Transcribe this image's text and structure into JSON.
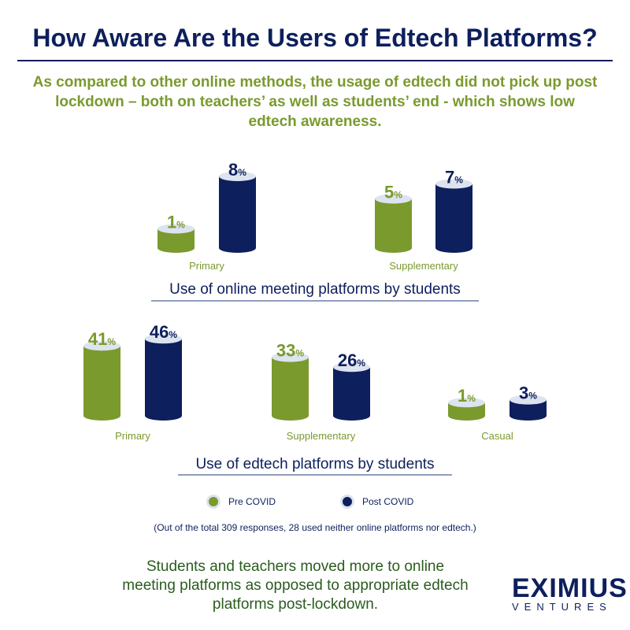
{
  "title": "How Aware Are the Users of Edtech Platforms?",
  "subtitle": "As compared to other online methods, the usage of edtech did not pick up post lockdown – both on teachers’ as well as students’ end - which shows low edtech awareness.",
  "colors": {
    "pre": "#7a9a2e",
    "post": "#0d1f5c",
    "cap": "#dde3ef"
  },
  "chart_data": [
    {
      "type": "bar",
      "title": "Use of online meeting platforms by students",
      "categories": [
        "Primary",
        "Supplementary"
      ],
      "series": [
        {
          "name": "Pre COVID",
          "values": [
            1,
            5
          ]
        },
        {
          "name": "Post COVID",
          "values": [
            8,
            7
          ]
        }
      ],
      "value_suffix": "%"
    },
    {
      "type": "bar",
      "title": "Use of edtech platforms by students",
      "categories": [
        "Primary",
        "Supplementary",
        "Casual"
      ],
      "series": [
        {
          "name": "Pre COVID",
          "values": [
            41,
            33,
            1
          ]
        },
        {
          "name": "Post COVID",
          "values": [
            46,
            26,
            3
          ]
        }
      ],
      "value_suffix": "%"
    }
  ],
  "legend": {
    "pre": "Pre COVID",
    "post": "Post COVID",
    "position": "bottom"
  },
  "note": "(Out of the total 309 responses, 28 used neither online platforms nor edtech.)",
  "conclusion": "Students and teachers moved more to online meeting platforms as opposed to appropriate edtech platforms post-lockdown.",
  "logo": {
    "main": "EXIMIUS",
    "sub": "VENTURES"
  }
}
